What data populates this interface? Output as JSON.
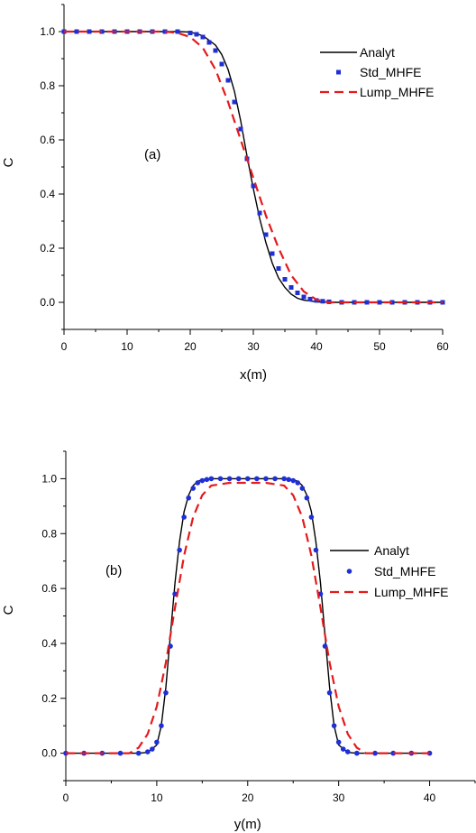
{
  "chart_data": [
    {
      "type": "line",
      "panel_label": "(a)",
      "xlabel": "x(m)",
      "ylabel": "C",
      "xlim": [
        0,
        60
      ],
      "ylim": [
        -0.1,
        1.1
      ],
      "xticks": [
        0,
        10,
        20,
        30,
        40,
        50,
        60
      ],
      "yticks": [
        0.0,
        0.2,
        0.4,
        0.6,
        0.8,
        1.0
      ],
      "xtick_labels": [
        "0",
        "10",
        "20",
        "30",
        "40",
        "50",
        "60"
      ],
      "ytick_labels": [
        "0.0",
        "0.2",
        "0.4",
        "0.6",
        "0.8",
        "1.0"
      ],
      "legend_position": "top-right",
      "series": [
        {
          "name": "Analyt",
          "style": "solid-line",
          "color": "#000000",
          "x": [
            0,
            10,
            18,
            20,
            22,
            24,
            25,
            26,
            27,
            28,
            29,
            30,
            31,
            32,
            33,
            34,
            35,
            36,
            37,
            38,
            40,
            42,
            45,
            60
          ],
          "y": [
            1.0,
            1.0,
            1.0,
            0.998,
            0.985,
            0.95,
            0.915,
            0.86,
            0.78,
            0.67,
            0.54,
            0.42,
            0.31,
            0.22,
            0.145,
            0.09,
            0.055,
            0.03,
            0.015,
            0.008,
            0.002,
            0.0,
            0.0,
            0.0
          ]
        },
        {
          "name": "Std_MHFE",
          "style": "square-markers",
          "color": "#1f2fd6",
          "x": [
            0,
            2,
            4,
            6,
            8,
            10,
            12,
            14,
            16,
            18,
            20,
            21,
            22,
            23,
            24,
            25,
            26,
            27,
            28,
            29,
            30,
            31,
            32,
            33,
            34,
            35,
            36,
            37,
            38,
            39,
            40,
            41,
            42,
            44,
            46,
            48,
            50,
            52,
            54,
            56,
            58,
            60
          ],
          "y": [
            1.0,
            1.0,
            1.0,
            1.0,
            1.0,
            1.0,
            1.0,
            1.0,
            1.0,
            1.0,
            0.995,
            0.99,
            0.98,
            0.96,
            0.93,
            0.88,
            0.82,
            0.74,
            0.64,
            0.53,
            0.43,
            0.33,
            0.25,
            0.18,
            0.125,
            0.085,
            0.055,
            0.035,
            0.02,
            0.012,
            0.007,
            0.004,
            0.002,
            0.0,
            0.0,
            0.0,
            0.0,
            0.0,
            0.0,
            0.0,
            0.0,
            0.0
          ]
        },
        {
          "name": "Lump_MHFE",
          "style": "dashed-line",
          "color": "#e41a1c",
          "x": [
            0,
            10,
            16,
            18,
            20,
            22,
            24,
            26,
            28,
            29,
            30,
            31,
            32,
            34,
            36,
            38,
            40,
            42,
            45,
            60
          ],
          "y": [
            1.0,
            1.0,
            1.0,
            0.995,
            0.98,
            0.94,
            0.86,
            0.74,
            0.6,
            0.53,
            0.46,
            0.39,
            0.32,
            0.2,
            0.1,
            0.04,
            0.01,
            0.0,
            0.0,
            0.0
          ]
        }
      ]
    },
    {
      "type": "line",
      "panel_label": "(b)",
      "xlabel": "y(m)",
      "ylabel": "C",
      "xlim": [
        0,
        45
      ],
      "ylim": [
        -0.1,
        1.1
      ],
      "xticks": [
        0,
        10,
        20,
        30,
        40
      ],
      "yticks": [
        0.0,
        0.2,
        0.4,
        0.6,
        0.8,
        1.0
      ],
      "xtick_labels": [
        "0",
        "10",
        "20",
        "30",
        "40"
      ],
      "ytick_labels": [
        "0.0",
        "0.2",
        "0.4",
        "0.6",
        "0.8",
        "1.0"
      ],
      "legend_position": "right",
      "series": [
        {
          "name": "Analyt",
          "style": "solid-line",
          "color": "#000000",
          "x": [
            0,
            8,
            9,
            10,
            10.5,
            11,
            11.5,
            12,
            12.5,
            13,
            13.5,
            14,
            14.5,
            15,
            16,
            18,
            20,
            22,
            24,
            25,
            25.5,
            26,
            26.5,
            27,
            27.5,
            28,
            28.5,
            29,
            29.5,
            30,
            31,
            32,
            40
          ],
          "y": [
            0.0,
            0.0,
            0.003,
            0.03,
            0.1,
            0.24,
            0.43,
            0.62,
            0.77,
            0.88,
            0.94,
            0.975,
            0.99,
            0.997,
            1.0,
            1.0,
            1.0,
            1.0,
            1.0,
            0.997,
            0.99,
            0.975,
            0.94,
            0.88,
            0.77,
            0.62,
            0.43,
            0.24,
            0.1,
            0.03,
            0.003,
            0.0,
            0.0
          ]
        },
        {
          "name": "Std_MHFE",
          "style": "circle-markers",
          "color": "#1f2fd6",
          "x": [
            0,
            2,
            4,
            6,
            8,
            9,
            9.5,
            10,
            10.5,
            11,
            11.5,
            12,
            12.5,
            13,
            13.5,
            14,
            14.5,
            15,
            15.5,
            16,
            17,
            18,
            19,
            20,
            21,
            22,
            23,
            24,
            24.5,
            25,
            25.5,
            26,
            26.5,
            27,
            27.5,
            28,
            28.5,
            29,
            29.5,
            30,
            30.5,
            31,
            32,
            34,
            36,
            38,
            40
          ],
          "y": [
            0.0,
            0.0,
            0.0,
            0.0,
            0.0,
            0.005,
            0.015,
            0.04,
            0.1,
            0.22,
            0.39,
            0.58,
            0.74,
            0.86,
            0.93,
            0.965,
            0.985,
            0.993,
            0.997,
            1.0,
            1.0,
            1.0,
            1.0,
            1.0,
            1.0,
            1.0,
            1.0,
            1.0,
            0.997,
            0.993,
            0.985,
            0.965,
            0.93,
            0.86,
            0.74,
            0.58,
            0.39,
            0.22,
            0.1,
            0.04,
            0.015,
            0.005,
            0.0,
            0.0,
            0.0,
            0.0,
            0.0
          ]
        },
        {
          "name": "Lump_MHFE",
          "style": "dashed-line",
          "color": "#e41a1c",
          "x": [
            0,
            7,
            8,
            9,
            10,
            11,
            12,
            13,
            14,
            15,
            16,
            18,
            20,
            22,
            24,
            25,
            26,
            27,
            28,
            29,
            30,
            31,
            32,
            33,
            40
          ],
          "y": [
            0.0,
            0.0,
            0.02,
            0.07,
            0.17,
            0.33,
            0.53,
            0.72,
            0.86,
            0.94,
            0.975,
            0.985,
            0.985,
            0.985,
            0.975,
            0.94,
            0.86,
            0.72,
            0.53,
            0.33,
            0.17,
            0.07,
            0.02,
            0.0,
            0.0
          ]
        }
      ]
    }
  ]
}
